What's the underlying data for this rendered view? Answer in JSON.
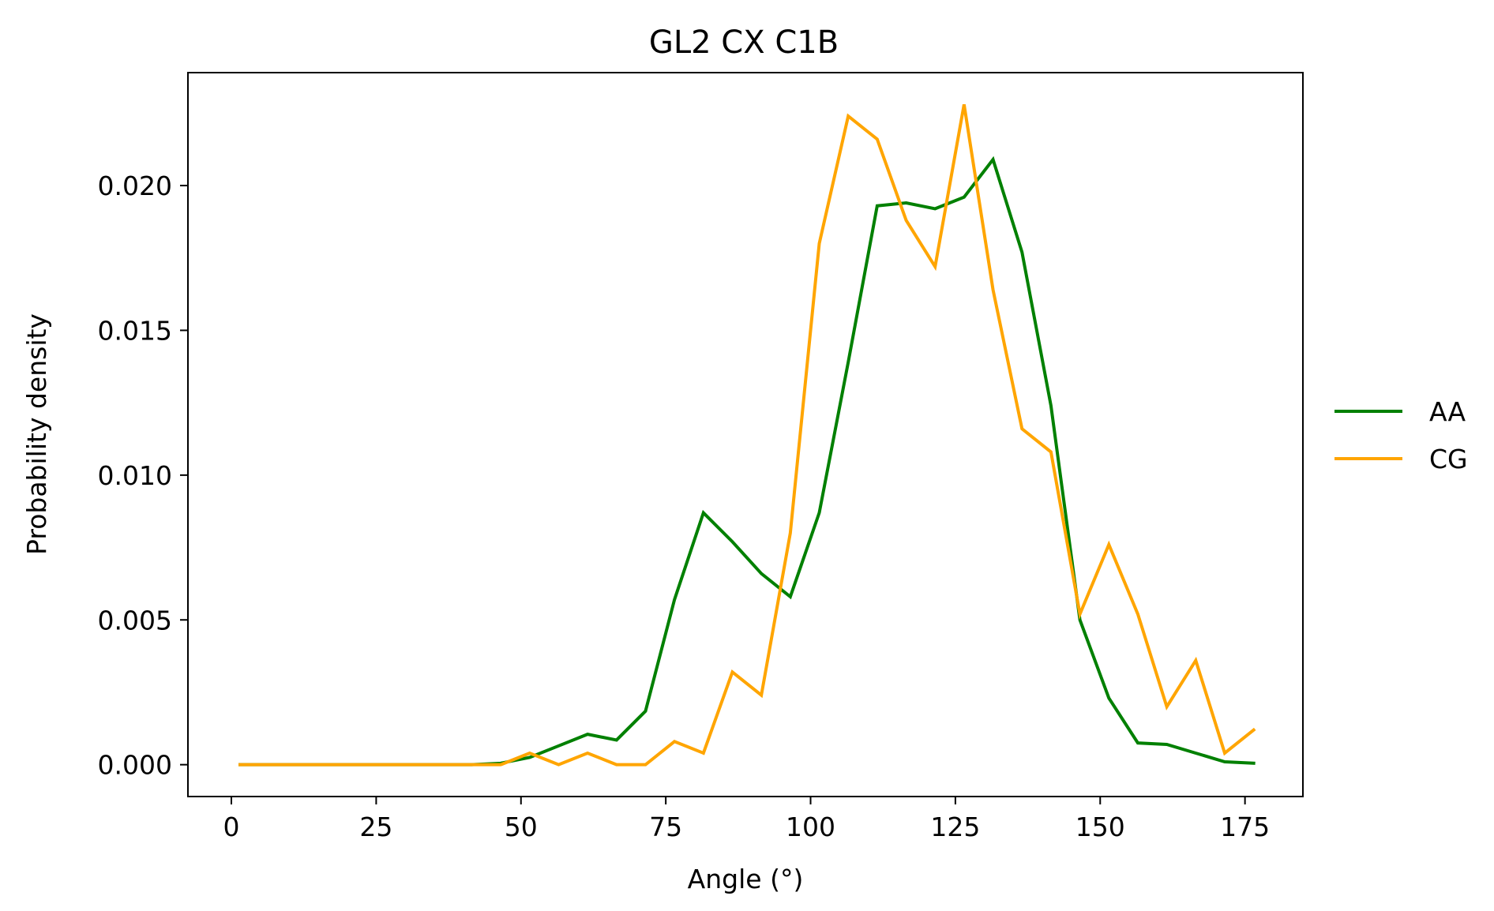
{
  "chart_data": {
    "type": "line",
    "title": "GL2 CX C1B",
    "xlabel": "Angle (°)",
    "ylabel": "Probability density",
    "xlim": [
      -7.5,
      185
    ],
    "ylim": [
      -0.0011,
      0.0239
    ],
    "xticks": [
      0,
      25,
      50,
      75,
      100,
      125,
      150,
      175
    ],
    "xtick_labels": [
      "0",
      "25",
      "50",
      "75",
      "100",
      "125",
      "150",
      "175"
    ],
    "yticks": [
      0.0,
      0.005,
      0.01,
      0.015,
      0.02
    ],
    "ytick_labels": [
      "0.000",
      "0.005",
      "0.010",
      "0.015",
      "0.020"
    ],
    "grid": false,
    "legend_position": "right, outside plot area",
    "series": [
      {
        "name": "AA",
        "color": "#008000",
        "x": [
          1.5,
          6.5,
          11.5,
          16.5,
          21.5,
          26.5,
          31.5,
          36.5,
          41.5,
          46.5,
          51.5,
          56.5,
          61.5,
          66.5,
          71.5,
          76.5,
          81.5,
          86.5,
          91.5,
          96.5,
          101.5,
          106.5,
          111.5,
          116.5,
          121.5,
          126.5,
          131.5,
          136.5,
          141.5,
          146.5,
          151.5,
          156.5,
          161.5,
          166.5,
          171.5,
          176.5
        ],
        "values": [
          0.0,
          0.0,
          0.0,
          0.0,
          0.0,
          0.0,
          0.0,
          0.0,
          0.0,
          5e-05,
          0.00025,
          0.00065,
          0.00105,
          0.00085,
          0.00185,
          0.0057,
          0.0087,
          0.0077,
          0.0066,
          0.0058,
          0.0087,
          0.0139,
          0.0193,
          0.0194,
          0.0192,
          0.0196,
          0.0209,
          0.0177,
          0.0124,
          0.005,
          0.0023,
          0.00075,
          0.0007,
          0.0004,
          0.0001,
          5e-05
        ]
      },
      {
        "name": "CG",
        "color": "#FFA500",
        "x": [
          1.5,
          6.5,
          11.5,
          16.5,
          21.5,
          26.5,
          31.5,
          36.5,
          41.5,
          46.5,
          51.5,
          56.5,
          61.5,
          66.5,
          71.5,
          76.5,
          81.5,
          86.5,
          91.5,
          96.5,
          101.5,
          106.5,
          111.5,
          116.5,
          121.5,
          126.5,
          131.5,
          136.5,
          141.5,
          146.5,
          151.5,
          156.5,
          161.5,
          166.5,
          171.5,
          176.5
        ],
        "values": [
          0.0,
          0.0,
          0.0,
          0.0,
          0.0,
          0.0,
          0.0,
          0.0,
          0.0,
          0.0,
          0.0004,
          0.0,
          0.0004,
          0.0,
          0.0,
          0.0008,
          0.0004,
          0.0032,
          0.0024,
          0.008,
          0.018,
          0.0224,
          0.0216,
          0.0188,
          0.0172,
          0.0228,
          0.0164,
          0.0116,
          0.0108,
          0.0052,
          0.0076,
          0.0052,
          0.002,
          0.0036,
          0.0004,
          0.0012
        ]
      }
    ]
  }
}
